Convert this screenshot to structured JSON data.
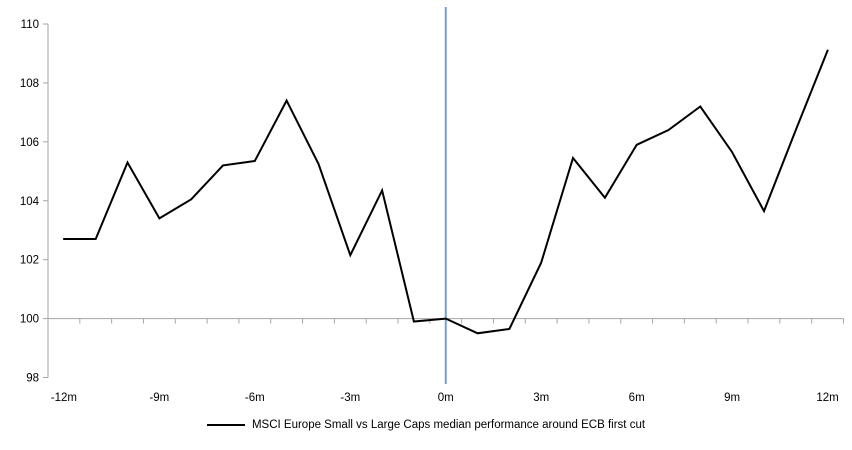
{
  "chart_data": {
    "type": "line",
    "title": "",
    "legend": "MSCI Europe Small vs Large Caps median performance around ECB first cut",
    "x_unit": "months relative to ECB first cut",
    "x": [
      -12,
      -11,
      -10,
      -9,
      -8,
      -7,
      -6,
      -5,
      -4,
      -3,
      -2,
      -1,
      0,
      1,
      2,
      3,
      4,
      5,
      6,
      7,
      8,
      9,
      10,
      11,
      12
    ],
    "series": [
      {
        "name": "MSCI Europe Small vs Large Caps median performance around ECB first cut",
        "color": "#000000",
        "values": [
          102.7,
          102.7,
          105.3,
          103.4,
          104.05,
          105.2,
          105.35,
          107.4,
          105.25,
          102.15,
          104.35,
          99.9,
          100.0,
          99.5,
          99.65,
          101.9,
          105.45,
          104.1,
          105.9,
          106.4,
          107.2,
          105.65,
          103.65,
          106.4,
          109.1
        ]
      }
    ],
    "ylim": [
      98,
      110
    ],
    "y_ticks": [
      98,
      100,
      102,
      104,
      106,
      108,
      110
    ],
    "y_tick_labels": [
      "98",
      "100",
      "102",
      "104",
      "106",
      "108",
      "110"
    ],
    "x_tick_months": [
      -12,
      -9,
      -6,
      -3,
      0,
      3,
      6,
      9,
      12
    ],
    "x_tick_labels": [
      "-12m",
      "-9m",
      "-6m",
      "-3m",
      "0m",
      "3m",
      "6m",
      "9m",
      "12m"
    ],
    "x_axis_cross_value": 100,
    "event_line": {
      "at_month": 0,
      "color": "#75a0cf"
    },
    "axis_color": "#a6a6a6",
    "grid": "off",
    "legend_position": "bottom-center"
  }
}
